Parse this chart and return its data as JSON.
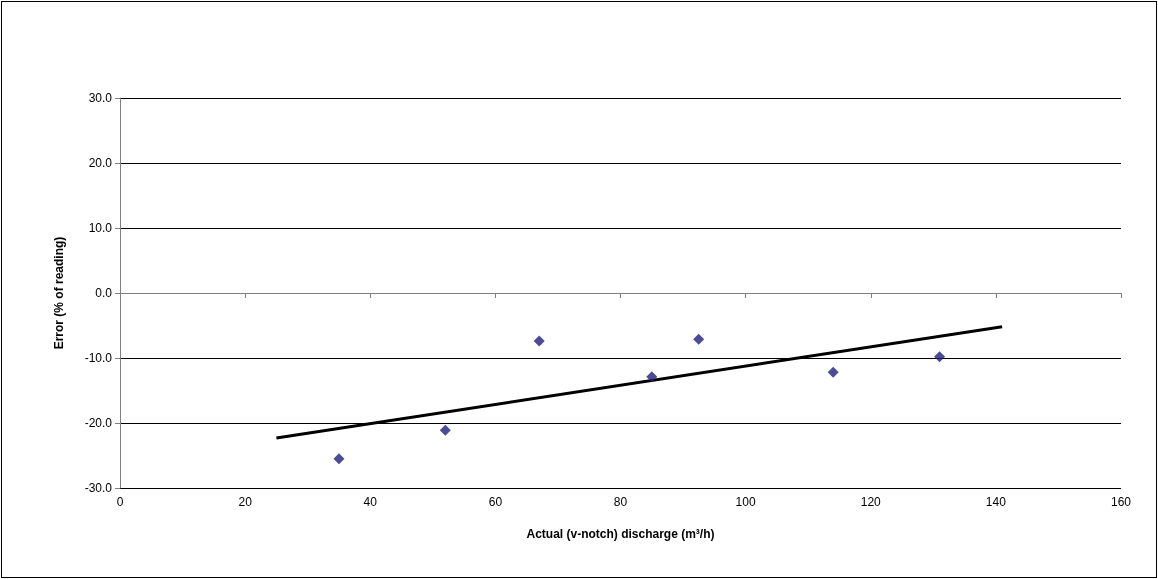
{
  "chart_data": {
    "type": "scatter",
    "xlabel": "Actual (v-notch) discharge (m³/h)",
    "ylabel": "Error (% of reading)",
    "xlim": [
      0,
      160
    ],
    "xticks": [
      0,
      20,
      40,
      60,
      80,
      100,
      120,
      140,
      160
    ],
    "ylim": [
      -30,
      30
    ],
    "yticks": [
      {
        "value": -30,
        "label": "-30.0"
      },
      {
        "value": -20,
        "label": "-20.0"
      },
      {
        "value": -10,
        "label": "-10.0"
      },
      {
        "value": 0,
        "label": "0.0"
      },
      {
        "value": 10,
        "label": "10.0"
      },
      {
        "value": 20,
        "label": "20.0"
      },
      {
        "value": 30,
        "label": "30.0"
      }
    ],
    "grid": "y",
    "series": [
      {
        "color": "#1f1f7a",
        "marker": "diamond",
        "x": [
          35,
          52,
          67,
          85,
          92.5,
          114,
          131
        ],
        "values": [
          -25.5,
          -21.1,
          -7.4,
          -12.9,
          -7.1,
          -12.2,
          -9.8
        ]
      },
      {
        "type": "line",
        "color": "#000000",
        "marker": "none",
        "line_style": "solid",
        "x": [
          25,
          141
        ],
        "values": [
          -22.3,
          -5.2
        ]
      }
    ]
  }
}
